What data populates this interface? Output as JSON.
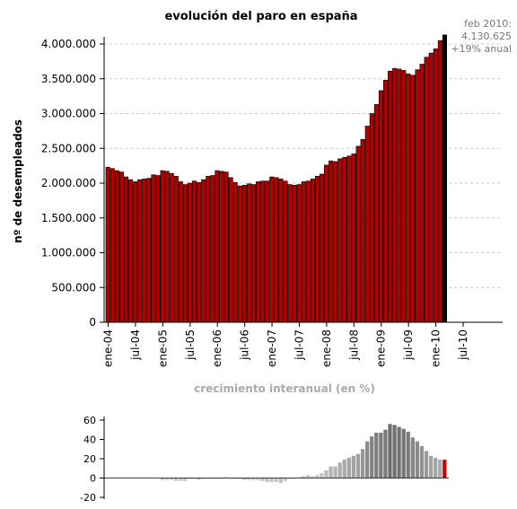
{
  "chart_data": [
    {
      "type": "bar",
      "title": "evolución del paro en españa",
      "ylabel": "nº de desempleados",
      "ylim": [
        0,
        4000000
      ],
      "yticks": [
        "0",
        "500.000",
        "1.000.000",
        "1.500.000",
        "2.000.000",
        "2.500.000",
        "3.000.000",
        "3.500.000",
        "4.000.000"
      ],
      "xticks": [
        "ene-04",
        "jul-04",
        "ene-05",
        "jul-05",
        "ene-06",
        "jul-06",
        "ene-07",
        "jul-07",
        "ene-08",
        "jul-08",
        "ene-09",
        "jul-09",
        "ene-10",
        "jul-10"
      ],
      "annotation": [
        "feb 2010:",
        "4.130.625",
        "+19% anual"
      ],
      "grid": true,
      "colors": {
        "bars": "#b00000",
        "highlight": "#000000",
        "grid": "#c8c8c8"
      },
      "values": [
        2230000,
        2210000,
        2180000,
        2160000,
        2090000,
        2050000,
        2020000,
        2050000,
        2060000,
        2070000,
        2120000,
        2110000,
        2180000,
        2170000,
        2140000,
        2100000,
        2020000,
        1980000,
        2000000,
        2030000,
        2010000,
        2050000,
        2100000,
        2110000,
        2180000,
        2170000,
        2160000,
        2080000,
        2010000,
        1960000,
        1970000,
        1990000,
        1980000,
        2020000,
        2030000,
        2030000,
        2090000,
        2080000,
        2060000,
        2030000,
        1980000,
        1970000,
        1980000,
        2020000,
        2030000,
        2060000,
        2100000,
        2130000,
        2260000,
        2320000,
        2310000,
        2350000,
        2370000,
        2390000,
        2420000,
        2530000,
        2630000,
        2820000,
        3000000,
        3130000,
        3330000,
        3480000,
        3610000,
        3650000,
        3640000,
        3620000,
        3570000,
        3550000,
        3630000,
        3710000,
        3810000,
        3870000,
        3930000,
        4050000,
        4130625
      ]
    },
    {
      "type": "bar",
      "title": "crecimiento interanual (en %)",
      "ylim": [
        -20,
        60
      ],
      "yticks": [
        "-20",
        "0",
        "20",
        "40",
        "60"
      ],
      "colors": {
        "bars": "#808080",
        "highlight": "#cc0000"
      },
      "values": [
        null,
        null,
        null,
        null,
        null,
        null,
        null,
        null,
        null,
        null,
        null,
        null,
        -2,
        -2,
        -2,
        -3,
        -3,
        -3,
        -1,
        -1,
        -2,
        -1,
        -1,
        -1,
        0,
        0,
        1,
        -1,
        -1,
        -1,
        -2,
        -2,
        -2,
        -2,
        -3,
        -4,
        -4,
        -4,
        -5,
        -3,
        -1,
        0,
        1,
        2,
        3,
        2,
        3,
        5,
        8,
        12,
        12,
        16,
        19,
        21,
        23,
        25,
        30,
        38,
        43,
        47,
        47,
        50,
        56,
        55,
        53,
        51,
        48,
        42,
        38,
        33,
        28,
        23,
        21,
        19,
        19
      ]
    }
  ]
}
